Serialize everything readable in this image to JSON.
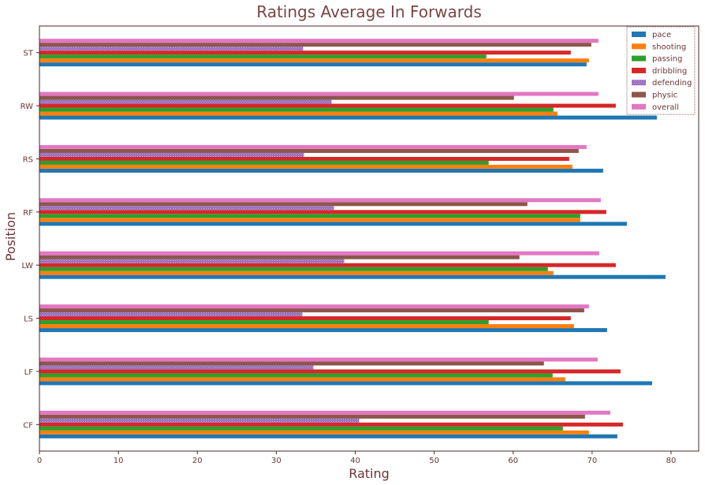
{
  "chart_data": {
    "type": "bar",
    "orientation": "horizontal",
    "title": "Ratings Average In Forwards",
    "xlabel": "Rating",
    "ylabel": "Position",
    "xlim": [
      0,
      83.5
    ],
    "xticks": [
      0,
      10,
      20,
      30,
      40,
      50,
      60,
      70,
      80
    ],
    "grid": false,
    "legend_position": "top-right",
    "categories": [
      "ST",
      "RW",
      "RS",
      "RF",
      "LW",
      "LS",
      "LF",
      "CF"
    ],
    "series": [
      {
        "name": "pace",
        "color": "#1f77b4",
        "values": [
          69.3,
          78.2,
          71.4,
          74.4,
          79.3,
          71.9,
          77.6,
          73.2
        ]
      },
      {
        "name": "shooting",
        "color": "#ff7f0e",
        "values": [
          69.6,
          65.6,
          67.5,
          68.5,
          65.1,
          67.7,
          66.6,
          69.6
        ]
      },
      {
        "name": "passing",
        "color": "#2ca02c",
        "values": [
          56.6,
          65.1,
          56.9,
          68.5,
          64.4,
          56.9,
          65.0,
          66.3
        ]
      },
      {
        "name": "dribbling",
        "color": "#d62728",
        "values": [
          67.3,
          73.0,
          67.1,
          71.8,
          73.0,
          67.3,
          73.6,
          73.9
        ]
      },
      {
        "name": "defending",
        "color": "#9467bd",
        "values": [
          33.4,
          37.0,
          33.5,
          37.3,
          38.6,
          33.3,
          34.7,
          40.5
        ]
      },
      {
        "name": "physic",
        "color": "#8c564b",
        "values": [
          69.9,
          60.1,
          68.3,
          61.8,
          60.8,
          69.0,
          63.9,
          69.1
        ]
      },
      {
        "name": "overall",
        "color": "#e377c2",
        "values": [
          70.8,
          70.8,
          69.3,
          71.1,
          70.9,
          69.6,
          70.7,
          72.3
        ]
      }
    ]
  }
}
